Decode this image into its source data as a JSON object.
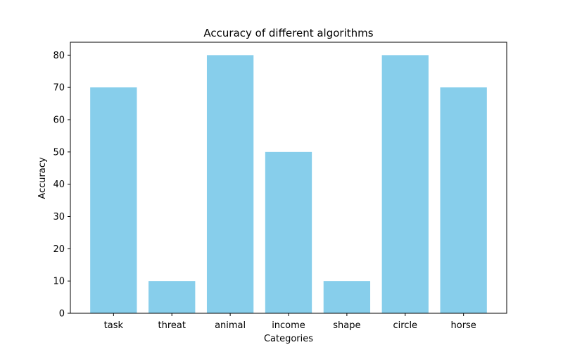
{
  "colors": {
    "bar": "#87ceeb",
    "axis": "#000000",
    "background": "#ffffff"
  },
  "chart_data": {
    "type": "bar",
    "title": "Accuracy of different algorithms",
    "xlabel": "Categories",
    "ylabel": "Accuracy",
    "categories": [
      "task",
      "threat",
      "animal",
      "income",
      "shape",
      "circle",
      "horse"
    ],
    "values": [
      70,
      10,
      80,
      50,
      10,
      80,
      70
    ],
    "ylim": [
      0,
      84
    ],
    "yticks": [
      0,
      10,
      20,
      30,
      40,
      50,
      60,
      70,
      80
    ],
    "grid": false,
    "legend": "none"
  }
}
